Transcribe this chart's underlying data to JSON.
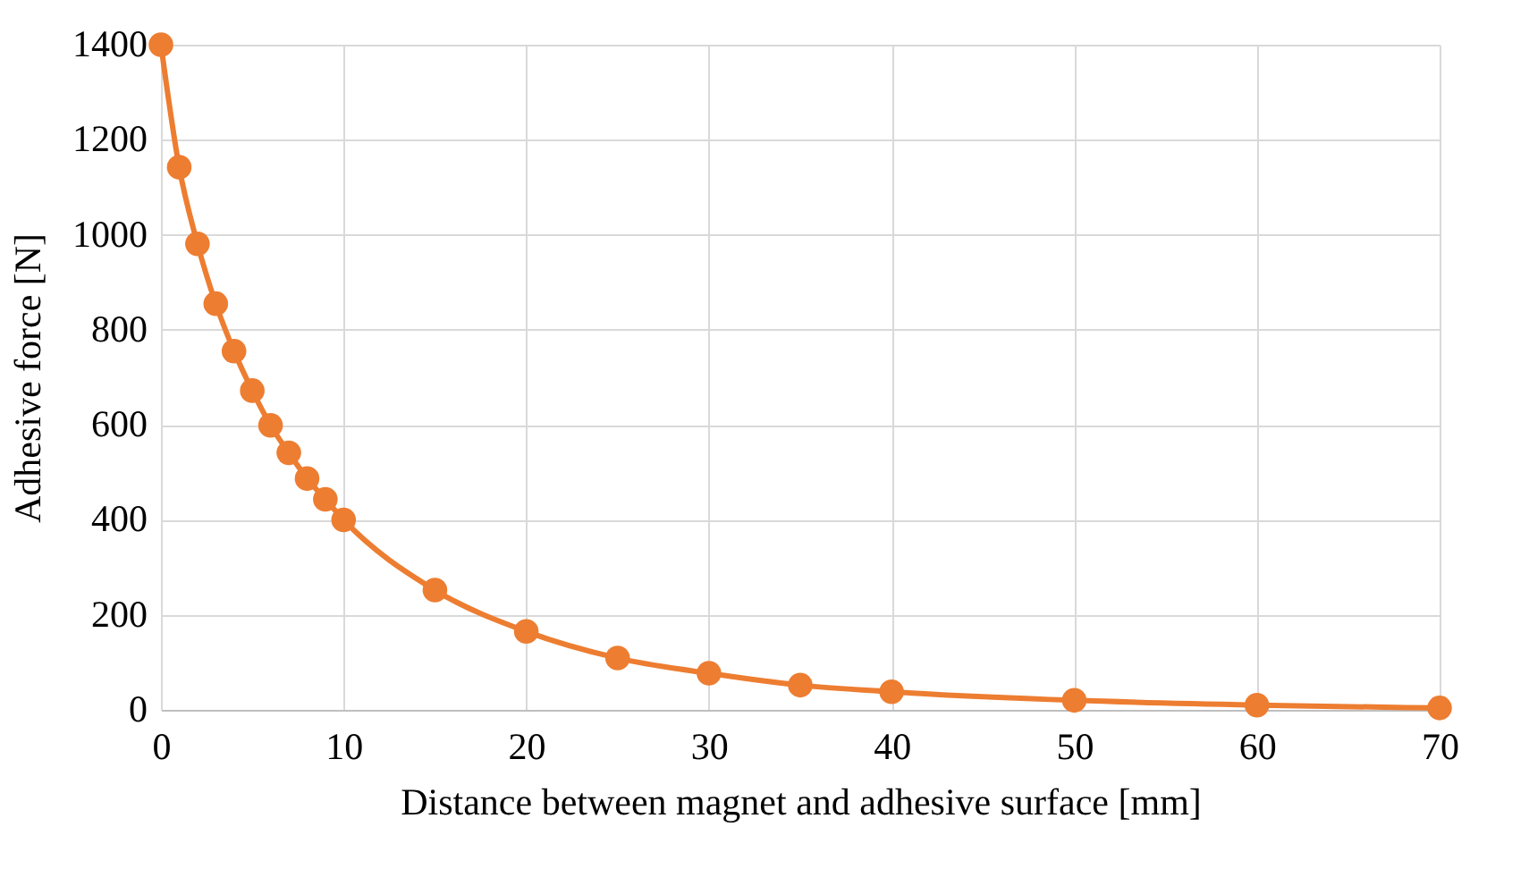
{
  "chart_data": {
    "type": "line",
    "xlabel": "Distance between magnet and adhesive surface [mm]",
    "ylabel": "Adhesive force [N]",
    "x": [
      0,
      1,
      2,
      3,
      4,
      5,
      6,
      7,
      8,
      9,
      10,
      15,
      20,
      25,
      30,
      35,
      40,
      50,
      60,
      70
    ],
    "series": [
      {
        "color": "#ed7d31",
        "values": [
          1400,
          1142,
          981,
          855,
          755,
          672,
          599,
          541,
          487,
          443,
          400,
          252,
          165,
          109,
          77,
          52,
          38,
          20,
          10,
          4
        ]
      }
    ],
    "xlim": [
      0,
      70
    ],
    "xticks": [
      0,
      10,
      20,
      30,
      40,
      50,
      60,
      70
    ],
    "ylim": [
      0,
      1400
    ],
    "yticks": [
      0,
      200,
      400,
      600,
      800,
      1000,
      1200,
      1400
    ],
    "grid": true,
    "marker": "circle",
    "line_style": "solid"
  }
}
